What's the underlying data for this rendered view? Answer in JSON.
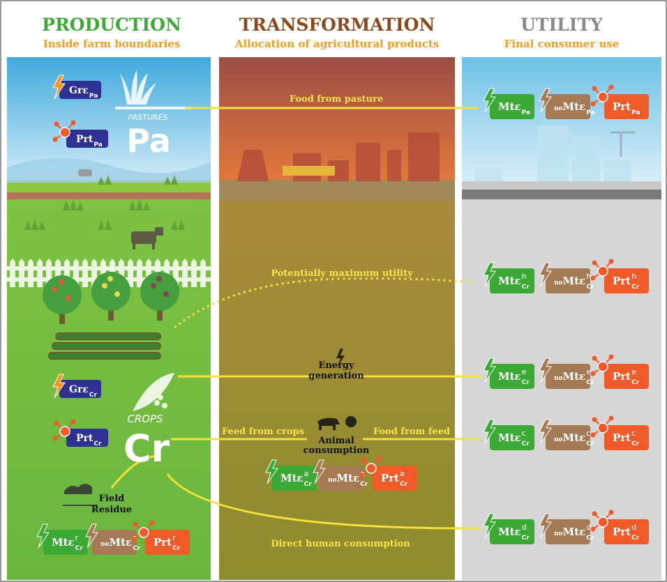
{
  "columns": [
    {
      "title": "PRODUCTION",
      "subtitle": "Inside farm boundaries"
    },
    {
      "title": "TRANSFORMATION",
      "subtitle": "Allocation of agricultural products"
    },
    {
      "title": "UTILITY",
      "subtitle": "Final consumer use"
    }
  ],
  "production": {
    "pasture_badges": [
      {
        "main": "Grε",
        "sub": "Pa"
      },
      {
        "main": "Prt",
        "sub": "Pa"
      }
    ],
    "pastures_label": "PASTURES",
    "pastures_symbol": "Pa",
    "crop_badges": [
      {
        "main": "Grε",
        "sub": "Cr"
      },
      {
        "main": "Prt",
        "sub": "Cr"
      }
    ],
    "crops_label": "CROPS",
    "crops_symbol": "Cr",
    "field_residue": [
      "Field",
      "Residue"
    ],
    "residue_badges": [
      {
        "main": "Mtε",
        "sup": "r",
        "sub": "Cr"
      },
      {
        "prefix": "no",
        "main": "Mtε",
        "sup": "r",
        "sub": "Cr"
      },
      {
        "main": "Prt",
        "sup": "r",
        "sub": "Cr"
      }
    ]
  },
  "transformation": {
    "food_from_pasture": "Food from pasture",
    "potentially_maximum_utility": "Potentially maximum utility",
    "energy_generation": [
      "Energy",
      "generation"
    ],
    "feed_from_crops": "Feed from crops",
    "animal_consumption": [
      "Animal",
      "consumption"
    ],
    "food_from_feed": "Food from feed",
    "direct_human_consumption": "Direct human consumption",
    "animal_badges": [
      {
        "main": "Mtε",
        "sup": "a",
        "sub": "Cr"
      },
      {
        "prefix": "no",
        "main": "Mtε",
        "sup": "a",
        "sub": "Cr"
      },
      {
        "main": "Prt",
        "sup": "a",
        "sub": "Cr"
      }
    ]
  },
  "utility": {
    "rows": [
      [
        {
          "main": "Mtε",
          "sub": "Pa"
        },
        {
          "prefix": "no",
          "main": "Mtε",
          "sub": "Pa"
        },
        {
          "main": "Prt",
          "sub": "Pa"
        }
      ],
      [
        {
          "main": "Mtε",
          "sup": "h",
          "sub": "Cr"
        },
        {
          "prefix": "no",
          "main": "Mtε",
          "sup": "h",
          "sub": "Cr"
        },
        {
          "main": "Prt",
          "sup": "h",
          "sub": "Cr"
        }
      ],
      [
        {
          "main": "Mtε",
          "sup": "e",
          "sub": "Cr"
        },
        {
          "prefix": "no",
          "main": "Mtε",
          "sup": "e",
          "sub": "Cr"
        },
        {
          "main": "Prt",
          "sup": "e",
          "sub": "Cr"
        }
      ],
      [
        {
          "main": "Mtε",
          "sup": "c",
          "sub": "Cr"
        },
        {
          "prefix": "no",
          "main": "Mtε",
          "sup": "c",
          "sub": "Cr"
        },
        {
          "main": "Prt",
          "sup": "c",
          "sub": "Cr"
        }
      ],
      [
        {
          "main": "Mtε",
          "sup": "d",
          "sub": "Cr"
        },
        {
          "prefix": "no",
          "main": "Mtε",
          "sup": "d",
          "sub": "Cr"
        },
        {
          "main": "Prt",
          "sup": "d",
          "sub": "Cr"
        }
      ]
    ]
  }
}
